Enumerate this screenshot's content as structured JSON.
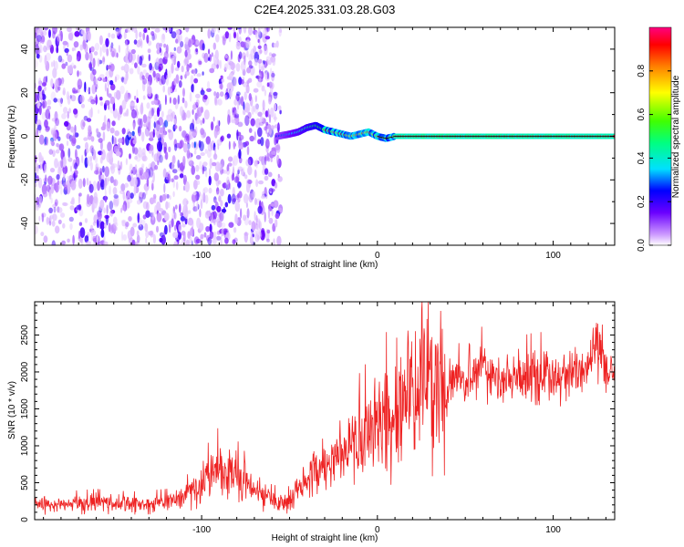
{
  "figure": {
    "title": "C2E4.2025.331.03.28.G03"
  },
  "chart_data": [
    {
      "type": "heatmap",
      "xlabel": "Height of straight line (km)",
      "ylabel": "Frequency (Hz)",
      "xlim": [
        -195,
        135
      ],
      "ylim": [
        -50,
        50
      ],
      "xticks": [
        -100,
        0,
        100
      ],
      "yticks": [
        -40,
        -20,
        0,
        20,
        40
      ],
      "colorbar": {
        "label": "Normalized spectral amplitude",
        "range": [
          0,
          1
        ],
        "ticks": [
          "0.0",
          "0.2",
          "0.4",
          "0.6",
          "0.8"
        ],
        "colormap": [
          "#ffffff",
          "#cc99ff",
          "#6a00ff",
          "#0000ff",
          "#00e0ff",
          "#00ff80",
          "#40ff00",
          "#ffff00",
          "#ff8000",
          "#ff0000",
          "#ff0080"
        ]
      },
      "tone_trace": {
        "x": [
          -57,
          -50,
          -45,
          -40,
          -35,
          -30,
          -25,
          -20,
          -15,
          -10,
          -5,
          0,
          5,
          10,
          135
        ],
        "y": [
          0,
          1,
          2,
          4,
          5,
          3,
          2,
          1,
          0,
          1,
          2,
          0,
          -1,
          0,
          0
        ]
      },
      "noise_region": {
        "x_from": -195,
        "x_to": -55
      }
    },
    {
      "type": "line",
      "xlabel": "Height of straight line (km)",
      "ylabel": "SNR (10 * v/v)",
      "xlim": [
        -195,
        135
      ],
      "ylim": [
        0,
        2950
      ],
      "xticks": [
        -100,
        0,
        100
      ],
      "yticks": [
        0,
        500,
        1000,
        1500,
        2000,
        2500
      ],
      "line_color": "#ee2222",
      "series": [
        {
          "x": [
            -195,
            -180,
            -160,
            -140,
            -120,
            -110,
            -100,
            -90,
            -80,
            -70,
            -60,
            -50,
            -45,
            -40,
            -30,
            -20,
            -10,
            0,
            10,
            20,
            30,
            40,
            50,
            55,
            60,
            70,
            80,
            90,
            100,
            110,
            115,
            120,
            125,
            130,
            135
          ],
          "y": [
            200,
            210,
            230,
            210,
            230,
            300,
            500,
            700,
            600,
            400,
            260,
            250,
            450,
            600,
            750,
            900,
            1100,
            1300,
            1500,
            1700,
            1800,
            1850,
            1900,
            2100,
            2050,
            1900,
            1950,
            2000,
            2000,
            1950,
            2050,
            2200,
            2400,
            2100,
            2050
          ]
        }
      ]
    }
  ]
}
